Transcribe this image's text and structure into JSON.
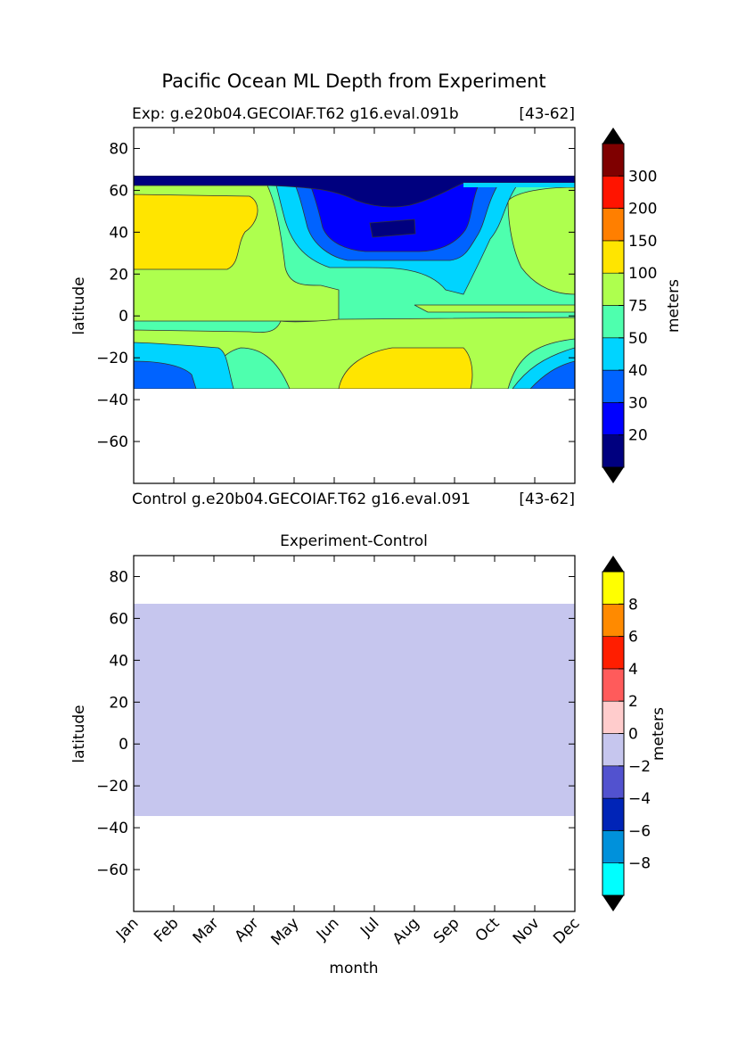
{
  "figure": {
    "title": "Pacific Ocean ML Depth from Experiment"
  },
  "chart_data": [
    {
      "type": "heatmap",
      "panel": "experiment",
      "subtitle_left": "Exp:    g.e20b04.GECOIAF.T62 g16.eval.091b",
      "subtitle_right": "[43-62]",
      "caption_left": "Control g.e20b04.GECOIAF.T62 g16.eval.091",
      "caption_right": "[43-62]",
      "xlabel": "",
      "ylabel": "latitude",
      "ylim": [
        -80,
        90
      ],
      "yticks": [
        80,
        60,
        40,
        20,
        0,
        -20,
        -40,
        -60
      ],
      "data_lat_range": [
        -34,
        67
      ],
      "x_categories": [
        "Jan",
        "Feb",
        "Mar",
        "Apr",
        "May",
        "Jun",
        "Jul",
        "Aug",
        "Sep",
        "Oct",
        "Nov",
        "Dec"
      ],
      "colorbar": {
        "label": "meters",
        "levels": [
          20,
          30,
          40,
          50,
          75,
          100,
          150,
          200,
          300
        ],
        "tick_labels": [
          "20",
          "30",
          "40",
          "50",
          "75",
          "100",
          "150",
          "200",
          "300"
        ],
        "colors": [
          "#00007f",
          "#0000ff",
          "#0063ff",
          "#00d4ff",
          "#4effae",
          "#aeff4e",
          "#ffe500",
          "#ff7f00",
          "#ff1400",
          "#7f0000"
        ],
        "extend": "both",
        "extend_color": "#000000"
      },
      "regions_description": "deep (>100 m) in NW subtropics Jan-Mar near 20-60N and S subtropics Jun-Sep near 15-34S; shallow (<20 m) in N Pacific Jun-Aug 40-67N"
    },
    {
      "type": "heatmap",
      "panel": "difference",
      "subtitle": "Experiment-Control",
      "xlabel": "month",
      "ylabel": "latitude",
      "ylim": [
        -80,
        90
      ],
      "yticks": [
        80,
        60,
        40,
        20,
        0,
        -20,
        -40,
        -60
      ],
      "data_lat_range": [
        -34,
        67
      ],
      "x_categories": [
        "Jan",
        "Feb",
        "Mar",
        "Apr",
        "May",
        "Jun",
        "Jul",
        "Aug",
        "Sep",
        "Oct",
        "Nov",
        "Dec"
      ],
      "uniform_value_range": [
        -2,
        0
      ],
      "colorbar": {
        "label": "meters",
        "levels": [
          -8,
          -6,
          -4,
          -2,
          0,
          2,
          4,
          6,
          8
        ],
        "tick_labels": [
          "-8",
          "-6",
          "-4",
          "-2",
          "0",
          "2",
          "4",
          "6",
          "8"
        ],
        "colors": [
          "#00ffff",
          "#0091db",
          "#0024b7",
          "#5252cf",
          "#c6c6ee",
          "#ffcccc",
          "#ff5b5b",
          "#ff1e00",
          "#ff8a00",
          "#ffff00"
        ],
        "extend": "both",
        "extend_color": "#000000",
        "fill_color": "#c6c6ee"
      }
    }
  ]
}
